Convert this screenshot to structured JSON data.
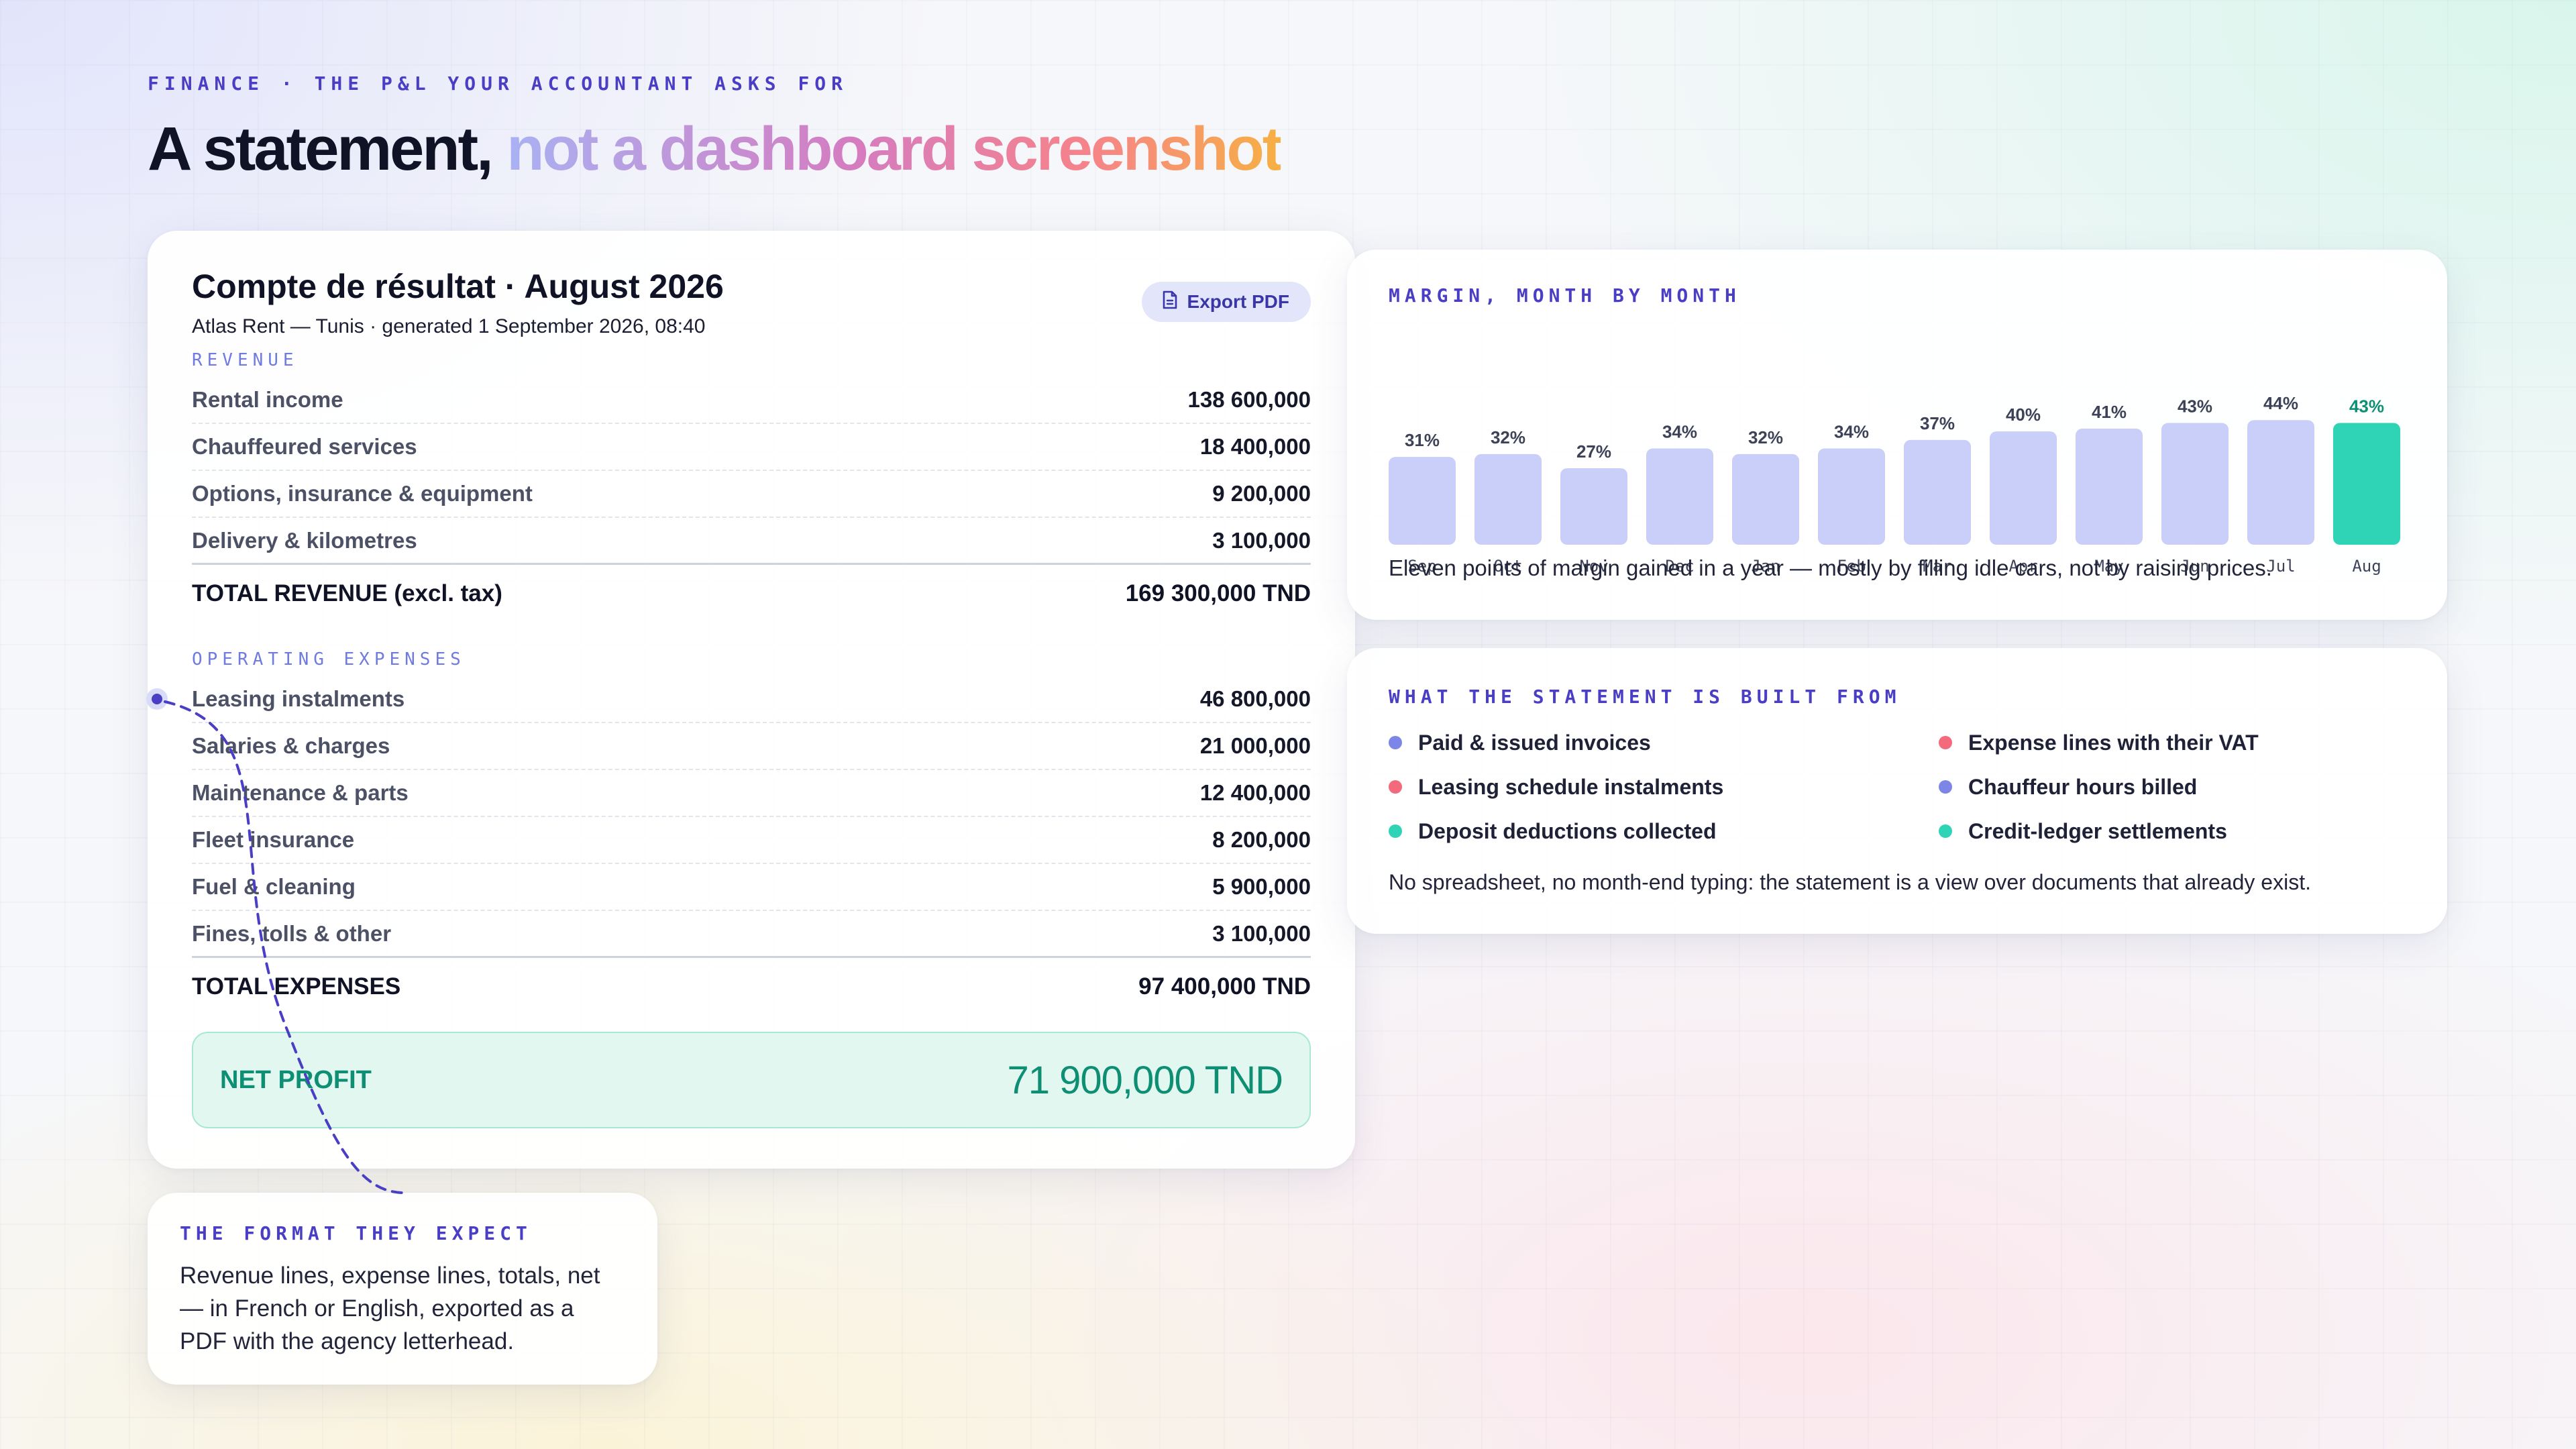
{
  "eyebrow": "FINANCE · THE P&L YOUR ACCOUNTANT ASKS FOR",
  "headline": {
    "plain": "A statement,",
    "highlight": "not a dashboard screenshot"
  },
  "statement": {
    "title": "Compte de résultat · August 2026",
    "subtitle": "Atlas Rent — Tunis · generated 1 September 2026, 08:40",
    "export_label": "Export PDF",
    "export_icon": "pdf-file-icon",
    "revenue": {
      "section_label": "REVENUE",
      "lines": [
        {
          "label": "Rental income",
          "amount": "138 600,000"
        },
        {
          "label": "Chauffeured services",
          "amount": "18 400,000"
        },
        {
          "label": "Options, insurance & equipment",
          "amount": "9 200,000"
        },
        {
          "label": "Delivery & kilometres",
          "amount": "3 100,000"
        }
      ],
      "total_label": "TOTAL REVENUE (excl. tax)",
      "total_amount": "169 300,000 TND"
    },
    "expenses": {
      "section_label": "OPERATING EXPENSES",
      "lines": [
        {
          "label": "Leasing instalments",
          "amount": "46 800,000"
        },
        {
          "label": "Salaries & charges",
          "amount": "21 000,000"
        },
        {
          "label": "Maintenance & parts",
          "amount": "12 400,000"
        },
        {
          "label": "Fleet insurance",
          "amount": "8 200,000"
        },
        {
          "label": "Fuel & cleaning",
          "amount": "5 900,000"
        },
        {
          "label": "Fines, tolls & other",
          "amount": "3 100,000"
        }
      ],
      "total_label": "TOTAL EXPENSES",
      "total_amount": "97 400,000 TND"
    },
    "net": {
      "label": "NET PROFIT",
      "amount": "71 900,000 TND"
    }
  },
  "margin_card": {
    "label": "MARGIN, MONTH BY MONTH",
    "caption": "Eleven points of margin gained in a year — mostly by filling idle cars, not by raising prices."
  },
  "chart_data": {
    "type": "bar",
    "title": "MARGIN, MONTH BY MONTH",
    "categories": [
      "Sep",
      "Oct",
      "Nov",
      "Dec",
      "Jan",
      "Feb",
      "Mar",
      "Apr",
      "May",
      "Jun",
      "Jul",
      "Aug"
    ],
    "values": [
      31,
      32,
      27,
      34,
      32,
      34,
      37,
      40,
      41,
      43,
      44,
      43
    ],
    "value_labels": [
      "31%",
      "32%",
      "27%",
      "34%",
      "32%",
      "34%",
      "37%",
      "40%",
      "41%",
      "43%",
      "44%",
      "43%"
    ],
    "unit": "%",
    "highlight_index": 11,
    "ylim": [
      0,
      45
    ],
    "grid": false,
    "colors": {
      "bar": "#c9cff8",
      "highlight": "#2fd3b6",
      "label": "#3e4258",
      "highlight_label": "#0e8f74"
    }
  },
  "sources_card": {
    "label": "WHAT THE STATEMENT IS BUILT FROM",
    "items": [
      {
        "label": "Paid & issued invoices",
        "color": "#7d86e6"
      },
      {
        "label": "Expense lines with their VAT",
        "color": "#f26a7c"
      },
      {
        "label": "Leasing schedule instalments",
        "color": "#f26a7c"
      },
      {
        "label": "Chauffeur hours billed",
        "color": "#7d86e6"
      },
      {
        "label": "Deposit deductions collected",
        "color": "#2fd3b6"
      },
      {
        "label": "Credit-ledger settlements",
        "color": "#2fd3b6"
      }
    ],
    "note": "No spreadsheet, no month-end typing: the statement is a view over documents that already exist."
  },
  "format_card": {
    "label": "THE FORMAT THEY EXPECT",
    "text": "Revenue lines, expense lines, totals, net — in French or English, exported as a PDF with the agency letterhead."
  },
  "colors": {
    "accent": "#4a3fc4",
    "net_green": "#0e8f74",
    "bar": "#c9cff8",
    "bar_highlight": "#2fd3b6"
  }
}
